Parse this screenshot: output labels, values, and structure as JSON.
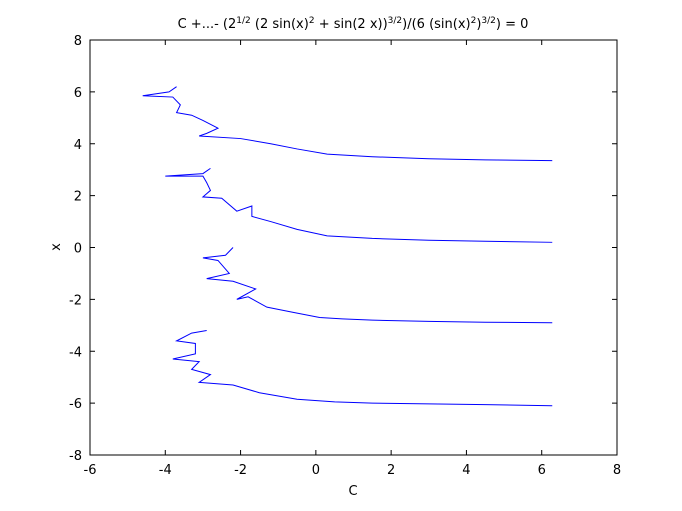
{
  "chart_data": {
    "type": "line",
    "title": [
      {
        "text": "C +...- (2"
      },
      {
        "text": "1/2",
        "sup": true
      },
      {
        "text": " (2 sin(x)"
      },
      {
        "text": "2",
        "sup": true
      },
      {
        "text": " + sin(2 x))"
      },
      {
        "text": "3/2",
        "sup": true
      },
      {
        "text": ")/(6 (sin(x)"
      },
      {
        "text": "2",
        "sup": true
      },
      {
        "text": ")"
      },
      {
        "text": "3/2",
        "sup": true
      },
      {
        "text": ") = 0"
      }
    ],
    "xlabel": "C",
    "ylabel": "x",
    "xlim": [
      -6,
      8
    ],
    "xticks": [
      -6,
      -4,
      -2,
      0,
      2,
      4,
      6,
      8
    ],
    "ylim": [
      -8,
      8
    ],
    "yticks": [
      -8,
      -6,
      -4,
      -2,
      0,
      2,
      4,
      6,
      8
    ],
    "grid": false,
    "series": [
      {
        "color": "#0000ff",
        "x": [
          -3.7,
          -3.9,
          -4.6,
          -3.8,
          -3.6,
          -3.7,
          -3.3,
          -3.0,
          -2.6,
          -2.9,
          -3.1,
          -2.0,
          -1.2,
          -0.5,
          0.3,
          1.5,
          3,
          4.5,
          6.28
        ],
        "values": [
          6.2,
          6.0,
          5.85,
          5.8,
          5.5,
          5.2,
          5.1,
          4.9,
          4.6,
          4.4,
          4.3,
          4.2,
          4.0,
          3.8,
          3.6,
          3.5,
          3.42,
          3.38,
          3.35
        ]
      },
      {
        "color": "#0000ff",
        "x": [
          -2.8,
          -3.0,
          -4.0,
          -3.0,
          -2.9,
          -2.8,
          -3.0,
          -2.5,
          -2.1,
          -1.7,
          -1.7,
          -1.2,
          -0.5,
          0.3,
          1.5,
          3,
          4.5,
          6.28
        ],
        "values": [
          3.05,
          2.85,
          2.75,
          2.75,
          2.5,
          2.2,
          1.95,
          1.9,
          1.4,
          1.6,
          1.2,
          1.0,
          0.7,
          0.45,
          0.35,
          0.28,
          0.24,
          0.2
        ]
      },
      {
        "color": "#0000ff",
        "x": [
          -2.2,
          -2.4,
          -3.0,
          -2.6,
          -2.3,
          -2.9,
          -2.2,
          -1.6,
          -2.1,
          -1.8,
          -1.3,
          -0.6,
          0.1,
          0.7,
          1.5,
          3,
          4.5,
          6.28
        ],
        "values": [
          0.0,
          -0.3,
          -0.4,
          -0.5,
          -1.0,
          -1.2,
          -1.3,
          -1.6,
          -2.0,
          -1.9,
          -2.3,
          -2.5,
          -2.7,
          -2.75,
          -2.8,
          -2.85,
          -2.88,
          -2.9
        ]
      },
      {
        "color": "#0000ff",
        "x": [
          -2.9,
          -3.3,
          -3.7,
          -3.2,
          -3.2,
          -3.8,
          -3.1,
          -3.3,
          -2.8,
          -3.1,
          -2.2,
          -1.5,
          -0.5,
          0.5,
          1.5,
          3,
          4.5,
          6.28
        ],
        "values": [
          -3.2,
          -3.3,
          -3.6,
          -3.7,
          -4.1,
          -4.3,
          -4.4,
          -4.7,
          -4.9,
          -5.2,
          -5.3,
          -5.6,
          -5.85,
          -5.95,
          -6.0,
          -6.03,
          -6.06,
          -6.1
        ]
      }
    ]
  }
}
